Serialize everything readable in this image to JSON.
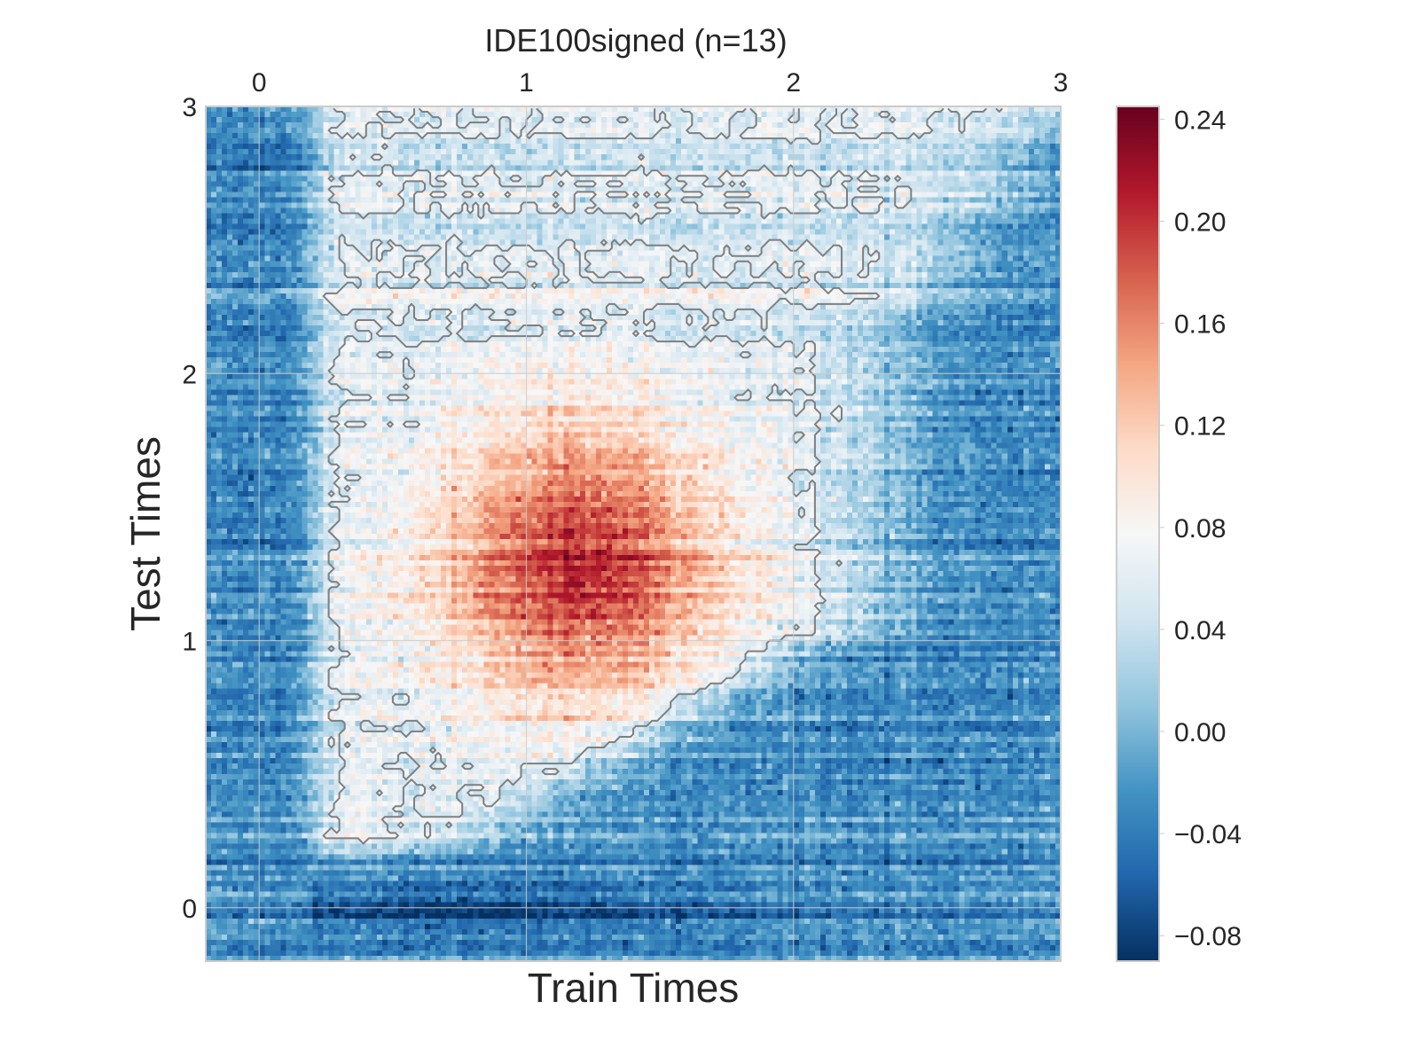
{
  "chart_data": {
    "type": "heatmap",
    "title": "IDE100signed (n=13)",
    "xlabel": "Train Times",
    "ylabel": "Test Times",
    "xlim": [
      -0.2,
      3.0
    ],
    "ylim": [
      -0.2,
      3.0
    ],
    "x_ticks": [
      "0",
      "1",
      "2",
      "3"
    ],
    "x_tick_values": [
      0,
      1,
      2,
      3
    ],
    "x_ticks_position": "top",
    "y_ticks": [
      "0",
      "1",
      "2",
      "3"
    ],
    "y_tick_values": [
      0,
      1,
      2,
      3
    ],
    "grid": true,
    "grid_color": "#cccccc",
    "colormap": "RdBu_r",
    "colorbar": {
      "vmin": -0.09,
      "vmax": 0.245,
      "ticks": [
        "0.24",
        "0.20",
        "0.16",
        "0.12",
        "0.08",
        "0.04",
        "0.00",
        "−0.04",
        "−0.08"
      ],
      "tick_values": [
        0.24,
        0.2,
        0.16,
        0.12,
        0.08,
        0.04,
        0.0,
        -0.04,
        -0.08
      ],
      "stops": [
        "#053061",
        "#2166ac",
        "#4393c3",
        "#92c5de",
        "#d1e5f0",
        "#f7f7f7",
        "#fddbc7",
        "#f4a582",
        "#d6604d",
        "#b2182b",
        "#67001f"
      ]
    },
    "contour": {
      "color": "#7f7f7f",
      "level": 0.055
    },
    "structure": {
      "chance_level": 0.055,
      "peak_value": 0.215,
      "peak_train_time": 1.2,
      "peak_test_time": 1.3,
      "onset_time": 0.2,
      "late_train_boundary_at_test_3": 3.0,
      "late_train_boundary_at_test_1": 2.3,
      "late_train_boundary_at_test_0_2": 0.7,
      "minimum_region": "negative values (about -0.07) near test time 0 to -0.05, train times 0.3 to 2"
    }
  }
}
